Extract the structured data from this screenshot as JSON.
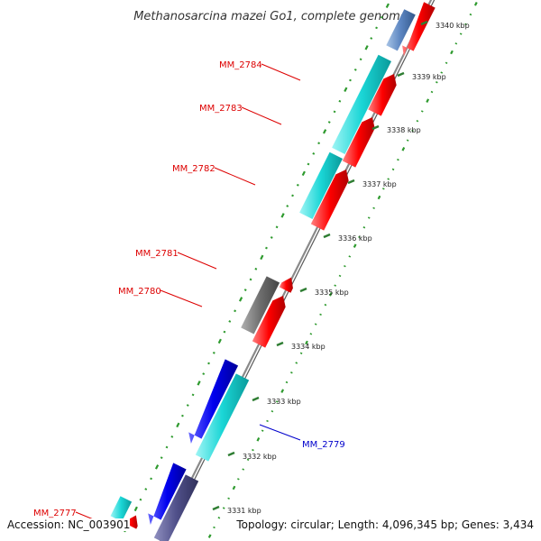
{
  "title": "Methanosarcina mazei Go1, complete genome",
  "accession": "Accession: NC_003901",
  "topology": "Topology: circular; Length: 4,096,345 bp; Genes: 3,434",
  "colors": {
    "backbone": "#8a8a8a",
    "forward_cds": "#ff0000",
    "reverse_cds": "#1ad6d6",
    "other_gene": "#0000ee",
    "pseudo": "#6e6e6e",
    "tick_major": "#2e7d32",
    "tick_minor": "#2e9a2e",
    "label_red": "#dd0000",
    "label_blue": "#0000cc"
  },
  "ticks": [
    {
      "label": "3340 kbp"
    },
    {
      "label": "3339 kbp"
    },
    {
      "label": "3338 kbp"
    },
    {
      "label": "3337 kbp"
    },
    {
      "label": "3336 kbp"
    },
    {
      "label": "3335 kbp"
    },
    {
      "label": "3334 kbp"
    },
    {
      "label": "3333 kbp"
    },
    {
      "label": "3332 kbp"
    },
    {
      "label": "3331 kbp"
    }
  ],
  "gene_labels": [
    {
      "label": "MM_2784",
      "color": "red"
    },
    {
      "label": "MM_2783",
      "color": "red"
    },
    {
      "label": "MM_2782",
      "color": "red"
    },
    {
      "label": "MM_2781",
      "color": "red"
    },
    {
      "label": "MM_2780",
      "color": "red"
    },
    {
      "label": "MM_2779",
      "color": "blue"
    },
    {
      "label": "MM_2777",
      "color": "red"
    }
  ]
}
